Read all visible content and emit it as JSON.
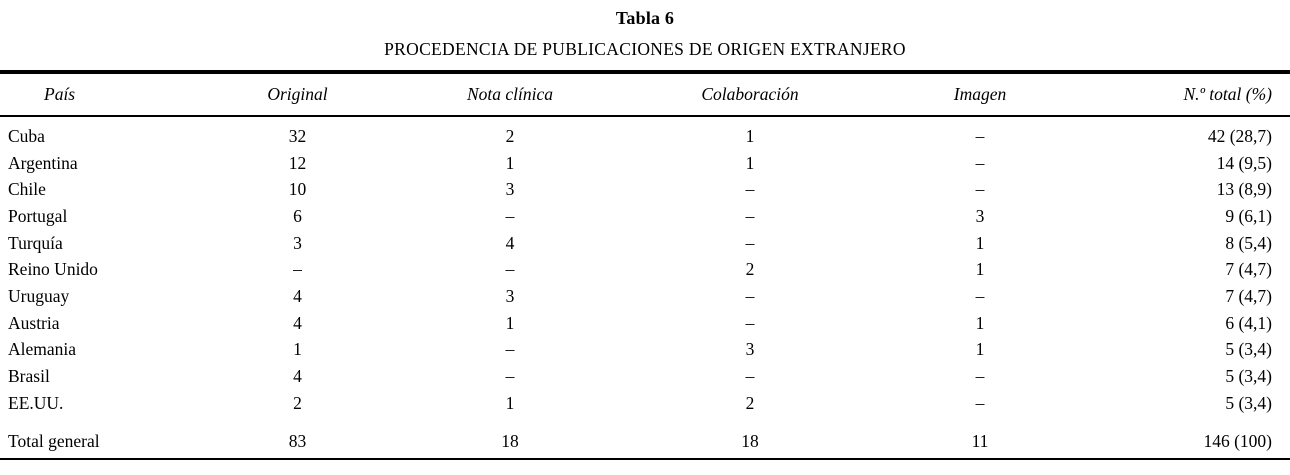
{
  "table": {
    "title": "Tabla 6",
    "subtitle": "PROCEDENCIA DE PUBLICACIONES DE ORIGEN EXTRANJERO",
    "columns": [
      "País",
      "Original",
      "Nota clínica",
      "Colaboración",
      "Imagen",
      "N.º total (%)"
    ],
    "rows": [
      [
        "Cuba",
        "32",
        "2",
        "1",
        "–",
        "42 (28,7)"
      ],
      [
        "Argentina",
        "12",
        "1",
        "1",
        "–",
        "14 (9,5)"
      ],
      [
        "Chile",
        "10",
        "3",
        "–",
        "–",
        "13 (8,9)"
      ],
      [
        "Portugal",
        "6",
        "–",
        "–",
        "3",
        "9 (6,1)"
      ],
      [
        "Turquía",
        "3",
        "4",
        "–",
        "1",
        "8 (5,4)"
      ],
      [
        "Reino Unido",
        "–",
        "–",
        "2",
        "1",
        "7 (4,7)"
      ],
      [
        "Uruguay",
        "4",
        "3",
        "–",
        "–",
        "7 (4,7)"
      ],
      [
        "Austria",
        "4",
        "1",
        "–",
        "1",
        "6 (4,1)"
      ],
      [
        "Alemania",
        "1",
        "–",
        "3",
        "1",
        "5 (3,4)"
      ],
      [
        "Brasil",
        "4",
        "–",
        "–",
        "–",
        "5 (3,4)"
      ],
      [
        "EE.UU.",
        "2",
        "1",
        "2",
        "–",
        "5 (3,4)"
      ]
    ],
    "total_row": [
      "Total general",
      "83",
      "18",
      "18",
      "11",
      "146 (100)"
    ],
    "colors": {
      "text": "#000000",
      "background": "#ffffff",
      "rule": "#000000"
    }
  }
}
